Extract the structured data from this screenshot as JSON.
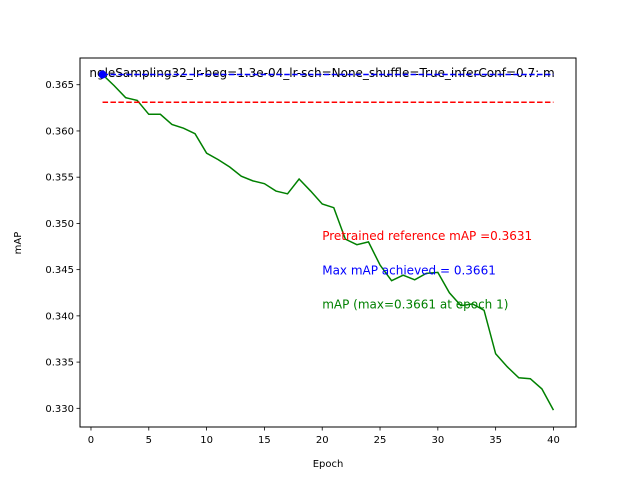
{
  "chart_data": {
    "type": "line",
    "title": "ngleSampling32_lr-beg=1.3e-04_lr-sch=None_shuffle=True_inferConf=0.7:  m",
    "xlabel": "Epoch",
    "ylabel": "mAP",
    "xlim": [
      -0.95,
      41.95
    ],
    "ylim": [
      0.32798,
      0.36789
    ],
    "xticks": [
      0,
      5,
      10,
      15,
      20,
      25,
      30,
      35,
      40
    ],
    "xtick_labels": [
      "0",
      "5",
      "10",
      "15",
      "20",
      "25",
      "30",
      "35",
      "40"
    ],
    "yticks": [
      0.33,
      0.335,
      0.34,
      0.345,
      0.35,
      0.355,
      0.36,
      0.365
    ],
    "ytick_labels": [
      "0.330",
      "0.335",
      "0.340",
      "0.345",
      "0.350",
      "0.355",
      "0.360",
      "0.365"
    ],
    "grid": false,
    "series": [
      {
        "color": "#008000",
        "style": "solid",
        "x": [
          1,
          2,
          3,
          4,
          5,
          6,
          7,
          8,
          9,
          10,
          11,
          12,
          13,
          14,
          15,
          16,
          17,
          18,
          19,
          20,
          21,
          22,
          23,
          24,
          25,
          26,
          27,
          28,
          29,
          30,
          31,
          32,
          33,
          34,
          35,
          36,
          37,
          38,
          39,
          40
        ],
        "values": [
          0.3661,
          0.3649,
          0.3636,
          0.3633,
          0.3618,
          0.3618,
          0.3607,
          0.3603,
          0.3597,
          0.3576,
          0.3569,
          0.3561,
          0.3551,
          0.3546,
          0.3543,
          0.3535,
          0.3532,
          0.3548,
          0.3535,
          0.3521,
          0.3517,
          0.3483,
          0.3477,
          0.348,
          0.3455,
          0.3438,
          0.3444,
          0.3439,
          0.3446,
          0.3447,
          0.3425,
          0.3411,
          0.3413,
          0.3406,
          0.3359,
          0.3345,
          0.3333,
          0.3332,
          0.3321,
          0.3298
        ]
      },
      {
        "color": "#0000ff",
        "style": "dashed",
        "x": [
          1,
          40
        ],
        "values": [
          0.3661,
          0.3661
        ]
      },
      {
        "color": "#ff0000",
        "style": "dashed",
        "x": [
          1,
          40
        ],
        "values": [
          0.3631,
          0.3631
        ]
      }
    ],
    "marker": {
      "x": 1,
      "y": 0.3661,
      "color": "#0000ff"
    },
    "annotations": [
      {
        "text": "Pretrained reference mAP =0.3631",
        "color": "#ff0000",
        "x": 20,
        "y": 0.3482
      },
      {
        "text": "Max mAP achieved = 0.3661",
        "color": "#0000ff",
        "x": 20,
        "y": 0.3445
      },
      {
        "text": "mAP (max=0.3661 at epoch 1)",
        "color": "#008000",
        "x": 20,
        "y": 0.3408
      }
    ]
  }
}
